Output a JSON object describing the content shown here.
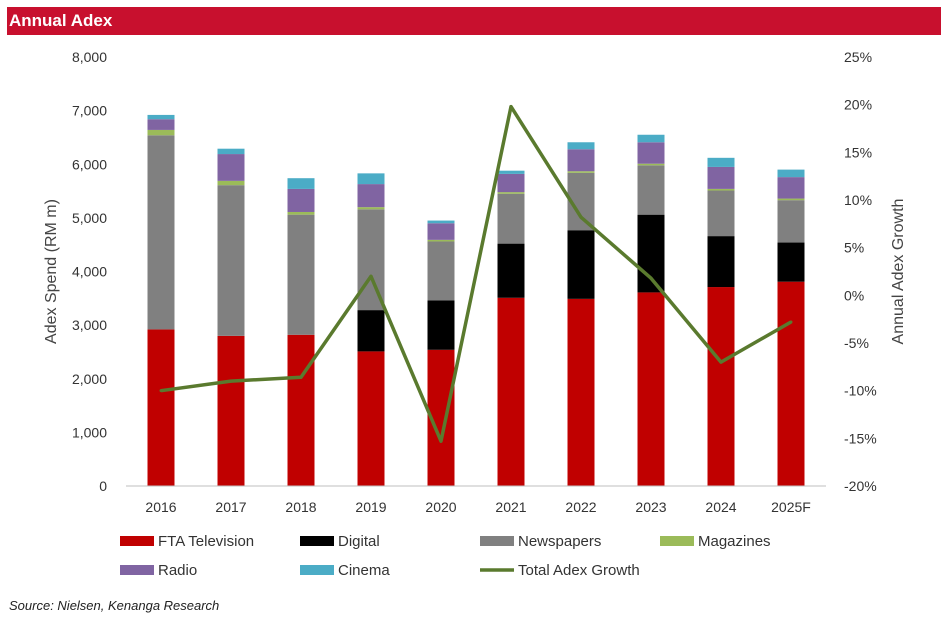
{
  "header": {
    "title": "Annual Adex"
  },
  "source": "Source:  Nielsen,  Kenanga  Research",
  "chart_data": {
    "type": "bar",
    "stacked": true,
    "categories": [
      "2016",
      "2017",
      "2018",
      "2019",
      "2020",
      "2021",
      "2022",
      "2023",
      "2024",
      "2025F"
    ],
    "series": [
      {
        "name": "FTA Television",
        "color": "#c00000",
        "values": [
          2920,
          2800,
          2820,
          2510,
          2540,
          3510,
          3490,
          3610,
          3710,
          3810
        ]
      },
      {
        "name": "Digital",
        "color": "#000000",
        "values": [
          0,
          0,
          0,
          770,
          920,
          1010,
          1280,
          1450,
          950,
          730
        ]
      },
      {
        "name": "Newspapers",
        "color": "#808080",
        "values": [
          3620,
          2810,
          2240,
          1880,
          1100,
          930,
          1070,
          920,
          850,
          790
        ]
      },
      {
        "name": "Magazines",
        "color": "#9bbb59",
        "values": [
          100,
          80,
          50,
          40,
          30,
          30,
          30,
          30,
          30,
          30
        ]
      },
      {
        "name": "Radio",
        "color": "#8064a2",
        "values": [
          200,
          500,
          430,
          430,
          310,
          340,
          410,
          400,
          410,
          400
        ]
      },
      {
        "name": "Cinema",
        "color": "#4bacc6",
        "values": [
          80,
          100,
          200,
          200,
          50,
          60,
          130,
          140,
          170,
          140
        ]
      }
    ],
    "line_series": {
      "name": "Total Adex Growth",
      "color": "#5a7a2e",
      "axis": "right",
      "values": [
        -10.0,
        -9.0,
        -8.6,
        2.0,
        -15.3,
        19.8,
        8.2,
        1.8,
        -7.0,
        -2.8
      ]
    },
    "y_left": {
      "label": "Adex Spend (RM m)",
      "min": 0,
      "max": 8000,
      "step": 1000,
      "ticks": [
        "0",
        "1,000",
        "2,000",
        "3,000",
        "4,000",
        "5,000",
        "6,000",
        "7,000",
        "8,000"
      ]
    },
    "y_right": {
      "label": "Annual Adex Growth",
      "min": -20,
      "max": 25,
      "step": 5,
      "ticks": [
        "-20%",
        "-15%",
        "-10%",
        "-5%",
        "0%",
        "5%",
        "10%",
        "15%",
        "20%",
        "25%"
      ]
    },
    "legend": {
      "position": "bottom",
      "items": [
        "FTA Television",
        "Digital",
        "Newspapers",
        "Magazines",
        "Radio",
        "Cinema",
        "Total Adex Growth"
      ]
    },
    "grid": false
  }
}
